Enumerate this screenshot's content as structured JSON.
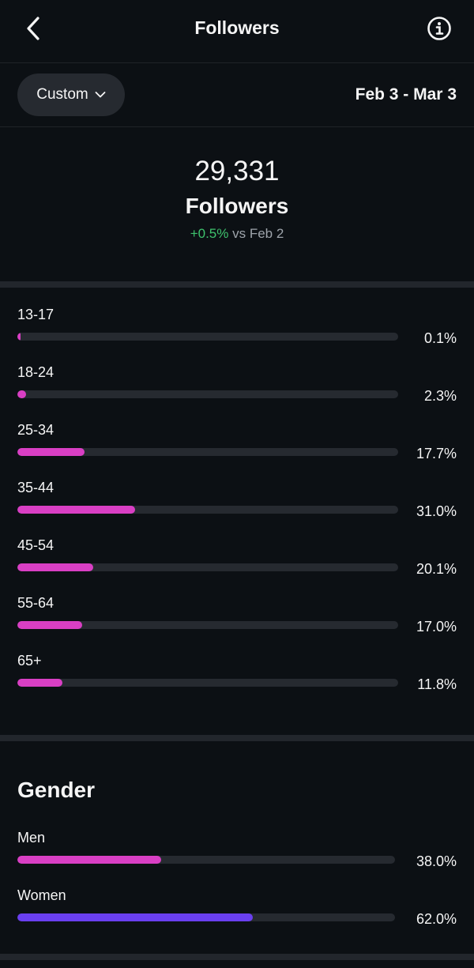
{
  "header": {
    "title": "Followers",
    "back_icon": "chevron-left-icon",
    "info_icon": "info-icon"
  },
  "filter": {
    "range_label": "Custom",
    "dropdown_icon": "chevron-down-icon",
    "date_range": "Feb 3 - Mar 3"
  },
  "summary": {
    "count": "29,331",
    "label": "Followers",
    "change": "+0.5%",
    "comparison": "vs Feb 2"
  },
  "colors": {
    "accent_pink": "#d93fc4",
    "accent_purple": "#6a3ff0",
    "positive": "#3ec26d"
  },
  "age": {
    "rows": [
      {
        "label": "13-17",
        "value": "0.1%",
        "fraction": 0.001
      },
      {
        "label": "18-24",
        "value": "2.3%",
        "fraction": 0.023
      },
      {
        "label": "25-34",
        "value": "17.7%",
        "fraction": 0.177
      },
      {
        "label": "35-44",
        "value": "31.0%",
        "fraction": 0.31
      },
      {
        "label": "45-54",
        "value": "20.1%",
        "fraction": 0.201
      },
      {
        "label": "55-64",
        "value": "17.0%",
        "fraction": 0.17
      },
      {
        "label": "65+",
        "value": "11.8%",
        "fraction": 0.118
      }
    ]
  },
  "gender": {
    "title": "Gender",
    "rows": [
      {
        "label": "Men",
        "value": "38.0%",
        "fraction": 0.38
      },
      {
        "label": "Women",
        "value": "62.0%",
        "fraction": 0.62
      }
    ]
  }
}
